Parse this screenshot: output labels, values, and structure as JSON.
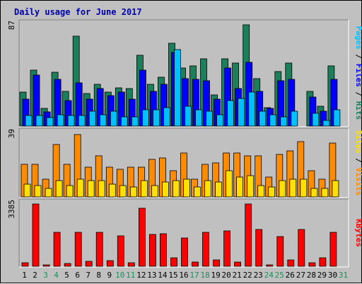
{
  "title": "Daily usage for June 2017",
  "colors": {
    "hits": "#1b7f5b",
    "files": "#0000ff",
    "pages": "#00c0ff",
    "visits": "#ff8c00",
    "sites": "#ffe000",
    "kbytes": "#ff0000",
    "title_text": "#0000aa",
    "weekday_label": "#000000",
    "weekend_label": "#1b8f5b"
  },
  "legend": {
    "top": [
      "Pages",
      "Files",
      "Hits"
    ],
    "middle": [
      "Sites",
      "Visits"
    ],
    "bottom": [
      "KBytes"
    ]
  },
  "chart_data": {
    "type": "bar",
    "categories": [
      "1",
      "2",
      "3",
      "4",
      "5",
      "6",
      "7",
      "8",
      "9",
      "10",
      "11",
      "12",
      "13",
      "14",
      "15",
      "16",
      "17",
      "18",
      "19",
      "20",
      "21",
      "22",
      "23",
      "24",
      "25",
      "26",
      "27",
      "28",
      "29",
      "30",
      "31"
    ],
    "weekend_days": [
      "3",
      "4",
      "10",
      "11",
      "17",
      "18",
      "24",
      "25",
      "31"
    ],
    "panels": [
      {
        "id": "hits-files-pages",
        "ymax": 87,
        "ymax_label": "87",
        "series": [
          {
            "name": "Hits",
            "color_key": "hits",
            "values": [
              29,
              48,
              15,
              46,
              30,
              77,
              28,
              36,
              29,
              33,
              32,
              61,
              36,
              42,
              71,
              50,
              52,
              58,
              27,
              58,
              54,
              87,
              41,
              16,
              47,
              54,
              0,
              30,
              17,
              52,
              0
            ]
          },
          {
            "name": "Files",
            "color_key": "files",
            "values": [
              23,
              44,
              12,
              40,
              22,
              37,
              23,
              32,
              26,
              29,
              23,
              48,
              30,
              36,
              63,
              41,
              40,
              39,
              23,
              50,
              32,
              55,
              30,
              15,
              39,
              40,
              0,
              25,
              13,
              40,
              0
            ]
          },
          {
            "name": "Pages",
            "color_key": "pages",
            "values": [
              9,
              9,
              7,
              10,
              9,
              9,
              13,
              10,
              13,
              8,
              8,
              14,
              14,
              16,
              66,
              17,
              14,
              13,
              10,
              22,
              24,
              29,
              13,
              10,
              8,
              13,
              0,
              11,
              5,
              14,
              0
            ]
          }
        ]
      },
      {
        "id": "visits-sites",
        "ymax": 39,
        "ymax_label": "39",
        "series": [
          {
            "name": "Visits",
            "color_key": "visits",
            "values": [
              20,
              20,
              11,
              32,
              20,
              38,
              18,
              25,
              18,
              17,
              18,
              18,
              23,
              24,
              16,
              27,
              11,
              20,
              21,
              27,
              27,
              25,
              25,
              12,
              26,
              28,
              34,
              16,
              11,
              33,
              0
            ]
          },
          {
            "name": "Sites",
            "color_key": "sites",
            "values": [
              8,
              7,
              5,
              10,
              7,
              11,
              10,
              10,
              8,
              7,
              6,
              10,
              7,
              9,
              10,
              11,
              6,
              10,
              9,
              16,
              12,
              13,
              7,
              6,
              10,
              11,
              11,
              5,
              5,
              10,
              0
            ]
          }
        ]
      },
      {
        "id": "kbytes",
        "ymax": 3385,
        "ymax_label": "3385",
        "series": [
          {
            "name": "KBytes",
            "color_key": "kbytes",
            "values": [
              190,
              3385,
              90,
              1850,
              140,
              1850,
              260,
              1850,
              320,
              1650,
              190,
              3140,
              1730,
              1770,
              470,
              1550,
              220,
              1830,
              330,
              1920,
              240,
              3385,
              1990,
              90,
              1630,
              360,
              1990,
              190,
              450,
              1830,
              0
            ]
          }
        ]
      }
    ]
  }
}
